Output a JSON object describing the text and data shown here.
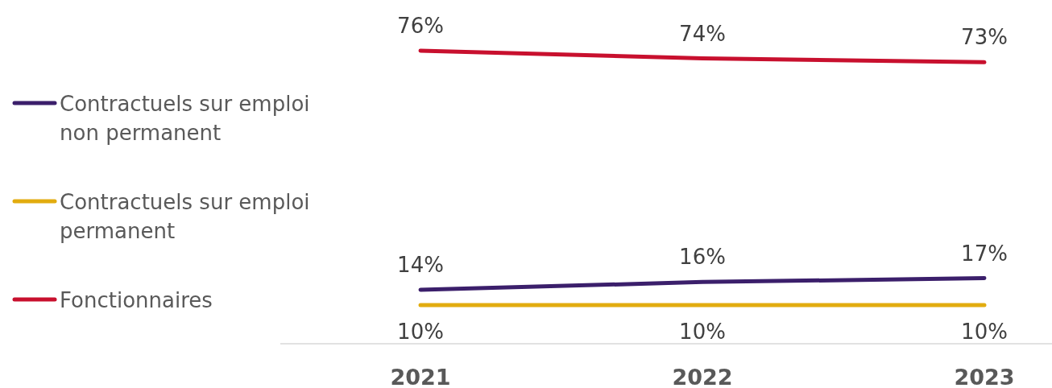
{
  "chart_data": {
    "type": "line",
    "categories": [
      "2021",
      "2022",
      "2023"
    ],
    "legend": "left",
    "marker": "none",
    "line_style": "solid",
    "series": [
      {
        "name": "Contractuels sur emploi non permanent",
        "color": "#3b1f6b",
        "values": [
          14,
          16,
          17
        ],
        "value_labels": [
          "14%",
          "16%",
          "17%"
        ]
      },
      {
        "name": "Contractuels sur emploi permanent",
        "color": "#e2ac0f",
        "values": [
          10,
          10,
          10
        ],
        "value_labels": [
          "10%",
          "10%",
          "10%"
        ]
      },
      {
        "name": "Fonctionnaires",
        "color": "#c8102e",
        "values": [
          76,
          74,
          73
        ],
        "value_labels": [
          "76%",
          "74%",
          "73%"
        ]
      }
    ]
  }
}
